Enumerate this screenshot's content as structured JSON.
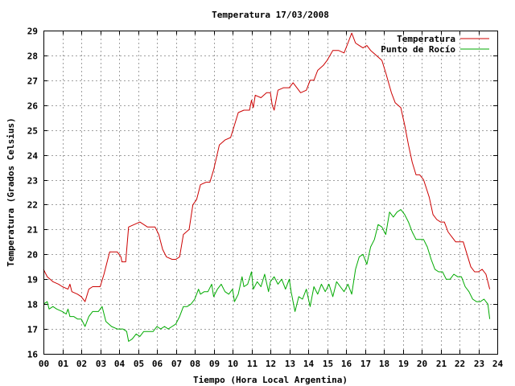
{
  "chart_data": {
    "type": "line",
    "title": "Temperatura 17/03/2008",
    "xlabel": "Tiempo (Hora Local Argentina)",
    "ylabel": "Temperatura (Grados Celsius)",
    "xlim": [
      0,
      24
    ],
    "ylim": [
      16,
      29
    ],
    "x_ticks": [
      "00",
      "01",
      "02",
      "03",
      "04",
      "05",
      "06",
      "07",
      "08",
      "09",
      "10",
      "11",
      "12",
      "13",
      "14",
      "15",
      "16",
      "17",
      "18",
      "19",
      "20",
      "21",
      "22",
      "23",
      "24"
    ],
    "y_ticks": [
      16,
      17,
      18,
      19,
      20,
      21,
      22,
      23,
      24,
      25,
      26,
      27,
      28,
      29
    ],
    "grid": true,
    "legend_position": "top-right",
    "series": [
      {
        "name": "Temperatura",
        "color": "#cc0000",
        "points": [
          [
            0.0,
            19.4
          ],
          [
            0.2,
            19.1
          ],
          [
            0.5,
            18.9
          ],
          [
            0.8,
            18.8
          ],
          [
            1.0,
            18.7
          ],
          [
            1.3,
            18.6
          ],
          [
            1.4,
            18.8
          ],
          [
            1.5,
            18.5
          ],
          [
            1.8,
            18.4
          ],
          [
            2.0,
            18.3
          ],
          [
            2.2,
            18.1
          ],
          [
            2.4,
            18.6
          ],
          [
            2.6,
            18.7
          ],
          [
            3.0,
            18.7
          ],
          [
            3.2,
            19.2
          ],
          [
            3.5,
            20.1
          ],
          [
            3.9,
            20.1
          ],
          [
            4.1,
            19.9
          ],
          [
            4.15,
            19.7
          ],
          [
            4.35,
            19.7
          ],
          [
            4.5,
            21.1
          ],
          [
            4.8,
            21.2
          ],
          [
            5.1,
            21.3
          ],
          [
            5.3,
            21.2
          ],
          [
            5.5,
            21.1
          ],
          [
            5.9,
            21.1
          ],
          [
            6.1,
            20.8
          ],
          [
            6.3,
            20.2
          ],
          [
            6.5,
            19.9
          ],
          [
            6.8,
            19.8
          ],
          [
            7.0,
            19.8
          ],
          [
            7.2,
            19.9
          ],
          [
            7.4,
            20.8
          ],
          [
            7.7,
            21.0
          ],
          [
            7.9,
            22.0
          ],
          [
            8.1,
            22.2
          ],
          [
            8.3,
            22.8
          ],
          [
            8.6,
            22.9
          ],
          [
            8.8,
            22.9
          ],
          [
            9.0,
            23.4
          ],
          [
            9.3,
            24.4
          ],
          [
            9.6,
            24.6
          ],
          [
            9.9,
            24.7
          ],
          [
            10.1,
            25.2
          ],
          [
            10.3,
            25.7
          ],
          [
            10.6,
            25.8
          ],
          [
            10.9,
            25.8
          ],
          [
            11.0,
            26.2
          ],
          [
            11.1,
            25.9
          ],
          [
            11.2,
            26.4
          ],
          [
            11.5,
            26.3
          ],
          [
            11.8,
            26.5
          ],
          [
            12.0,
            26.5
          ],
          [
            12.1,
            26.0
          ],
          [
            12.2,
            25.8
          ],
          [
            12.4,
            26.6
          ],
          [
            12.7,
            26.7
          ],
          [
            13.0,
            26.7
          ],
          [
            13.2,
            26.9
          ],
          [
            13.4,
            26.7
          ],
          [
            13.6,
            26.5
          ],
          [
            13.9,
            26.6
          ],
          [
            14.1,
            27.0
          ],
          [
            14.3,
            27.0
          ],
          [
            14.5,
            27.4
          ],
          [
            14.8,
            27.6
          ],
          [
            15.0,
            27.8
          ],
          [
            15.3,
            28.2
          ],
          [
            15.6,
            28.2
          ],
          [
            15.9,
            28.1
          ],
          [
            16.1,
            28.5
          ],
          [
            16.3,
            28.9
          ],
          [
            16.5,
            28.5
          ],
          [
            16.7,
            28.4
          ],
          [
            16.9,
            28.3
          ],
          [
            17.1,
            28.4
          ],
          [
            17.3,
            28.2
          ],
          [
            17.6,
            28.0
          ],
          [
            17.9,
            27.8
          ],
          [
            18.1,
            27.3
          ],
          [
            18.4,
            26.5
          ],
          [
            18.6,
            26.1
          ],
          [
            18.9,
            25.9
          ],
          [
            19.1,
            25.2
          ],
          [
            19.3,
            24.4
          ],
          [
            19.5,
            23.7
          ],
          [
            19.7,
            23.2
          ],
          [
            19.9,
            23.2
          ],
          [
            20.1,
            23.0
          ],
          [
            20.4,
            22.3
          ],
          [
            20.6,
            21.6
          ],
          [
            20.8,
            21.4
          ],
          [
            21.0,
            21.3
          ],
          [
            21.2,
            21.3
          ],
          [
            21.4,
            20.9
          ],
          [
            21.6,
            20.7
          ],
          [
            21.8,
            20.5
          ],
          [
            22.0,
            20.5
          ],
          [
            22.2,
            20.5
          ],
          [
            22.4,
            20.0
          ],
          [
            22.6,
            19.5
          ],
          [
            22.8,
            19.3
          ],
          [
            23.0,
            19.3
          ],
          [
            23.2,
            19.4
          ],
          [
            23.4,
            19.2
          ],
          [
            23.6,
            18.6
          ]
        ]
      },
      {
        "name": "Punto de Rocío",
        "color": "#00aa00",
        "points": [
          [
            0.0,
            18.0
          ],
          [
            0.2,
            18.1
          ],
          [
            0.3,
            17.8
          ],
          [
            0.5,
            17.9
          ],
          [
            0.7,
            17.8
          ],
          [
            1.0,
            17.7
          ],
          [
            1.2,
            17.6
          ],
          [
            1.3,
            17.8
          ],
          [
            1.4,
            17.5
          ],
          [
            1.6,
            17.5
          ],
          [
            1.8,
            17.4
          ],
          [
            2.0,
            17.4
          ],
          [
            2.2,
            17.1
          ],
          [
            2.4,
            17.5
          ],
          [
            2.6,
            17.7
          ],
          [
            2.9,
            17.7
          ],
          [
            3.1,
            17.9
          ],
          [
            3.3,
            17.3
          ],
          [
            3.6,
            17.1
          ],
          [
            3.9,
            17.0
          ],
          [
            4.2,
            17.0
          ],
          [
            4.4,
            16.9
          ],
          [
            4.5,
            16.5
          ],
          [
            4.7,
            16.6
          ],
          [
            4.9,
            16.8
          ],
          [
            5.1,
            16.7
          ],
          [
            5.3,
            16.9
          ],
          [
            5.5,
            16.9
          ],
          [
            5.8,
            16.9
          ],
          [
            6.0,
            17.1
          ],
          [
            6.2,
            17.0
          ],
          [
            6.4,
            17.1
          ],
          [
            6.6,
            17.0
          ],
          [
            6.8,
            17.1
          ],
          [
            7.0,
            17.2
          ],
          [
            7.2,
            17.5
          ],
          [
            7.4,
            17.9
          ],
          [
            7.6,
            17.9
          ],
          [
            7.8,
            18.0
          ],
          [
            8.0,
            18.2
          ],
          [
            8.2,
            18.6
          ],
          [
            8.3,
            18.4
          ],
          [
            8.5,
            18.5
          ],
          [
            8.7,
            18.5
          ],
          [
            8.9,
            18.8
          ],
          [
            9.0,
            18.3
          ],
          [
            9.2,
            18.6
          ],
          [
            9.4,
            18.8
          ],
          [
            9.6,
            18.5
          ],
          [
            9.8,
            18.4
          ],
          [
            10.0,
            18.6
          ],
          [
            10.1,
            18.1
          ],
          [
            10.3,
            18.4
          ],
          [
            10.5,
            19.1
          ],
          [
            10.6,
            18.7
          ],
          [
            10.8,
            18.8
          ],
          [
            11.0,
            19.3
          ],
          [
            11.1,
            18.6
          ],
          [
            11.3,
            18.9
          ],
          [
            11.5,
            18.7
          ],
          [
            11.7,
            19.2
          ],
          [
            11.9,
            18.5
          ],
          [
            12.0,
            18.9
          ],
          [
            12.2,
            19.1
          ],
          [
            12.4,
            18.8
          ],
          [
            12.6,
            19.0
          ],
          [
            12.8,
            18.6
          ],
          [
            13.0,
            19.0
          ],
          [
            13.1,
            18.5
          ],
          [
            13.3,
            17.7
          ],
          [
            13.5,
            18.3
          ],
          [
            13.7,
            18.2
          ],
          [
            13.9,
            18.6
          ],
          [
            14.1,
            17.9
          ],
          [
            14.3,
            18.7
          ],
          [
            14.5,
            18.4
          ],
          [
            14.7,
            18.8
          ],
          [
            14.9,
            18.5
          ],
          [
            15.1,
            18.8
          ],
          [
            15.3,
            18.3
          ],
          [
            15.5,
            18.9
          ],
          [
            15.7,
            18.7
          ],
          [
            15.9,
            18.5
          ],
          [
            16.1,
            18.8
          ],
          [
            16.3,
            18.4
          ],
          [
            16.5,
            19.4
          ],
          [
            16.7,
            19.9
          ],
          [
            16.9,
            20.0
          ],
          [
            17.1,
            19.6
          ],
          [
            17.3,
            20.3
          ],
          [
            17.5,
            20.6
          ],
          [
            17.7,
            21.2
          ],
          [
            17.9,
            21.1
          ],
          [
            18.1,
            20.8
          ],
          [
            18.3,
            21.7
          ],
          [
            18.5,
            21.5
          ],
          [
            18.7,
            21.7
          ],
          [
            18.9,
            21.8
          ],
          [
            19.1,
            21.6
          ],
          [
            19.3,
            21.3
          ],
          [
            19.5,
            20.9
          ],
          [
            19.7,
            20.6
          ],
          [
            19.9,
            20.6
          ],
          [
            20.1,
            20.6
          ],
          [
            20.3,
            20.3
          ],
          [
            20.5,
            19.8
          ],
          [
            20.7,
            19.4
          ],
          [
            20.9,
            19.3
          ],
          [
            21.1,
            19.3
          ],
          [
            21.3,
            19.0
          ],
          [
            21.5,
            19.0
          ],
          [
            21.7,
            19.2
          ],
          [
            21.9,
            19.1
          ],
          [
            22.1,
            19.1
          ],
          [
            22.3,
            18.7
          ],
          [
            22.5,
            18.5
          ],
          [
            22.7,
            18.2
          ],
          [
            22.9,
            18.1
          ],
          [
            23.1,
            18.1
          ],
          [
            23.3,
            18.2
          ],
          [
            23.5,
            18.0
          ],
          [
            23.6,
            17.4
          ]
        ]
      }
    ]
  }
}
